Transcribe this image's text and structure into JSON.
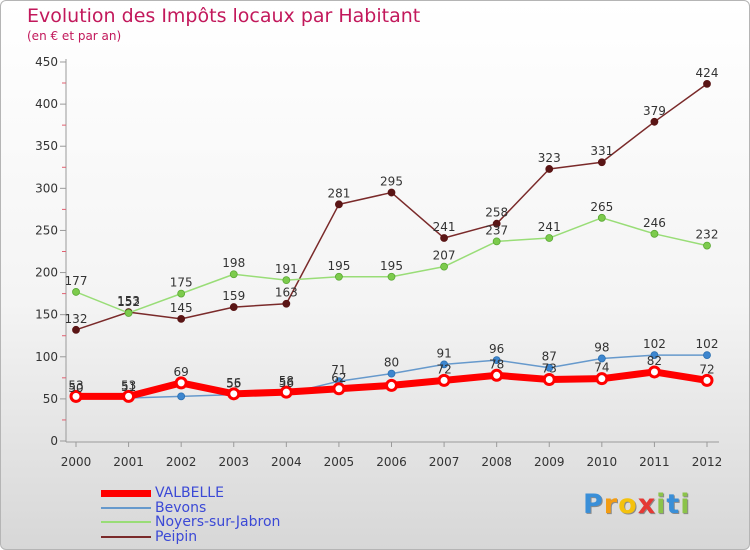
{
  "title": "Evolution des Impôts locaux par Habitant",
  "subtitle": "(en € et par an)",
  "logo": {
    "letters": [
      "P",
      "r",
      "o",
      "x",
      "i",
      "t",
      "i"
    ],
    "colors": [
      "#3a8fd8",
      "#f39c12",
      "#f4c20d",
      "#e53935",
      "#8bc34a",
      "#3a8fd8",
      "#8bc34a"
    ]
  },
  "chart_data": {
    "type": "line",
    "x": [
      "2000",
      "2001",
      "2002",
      "2003",
      "2004",
      "2005",
      "2006",
      "2007",
      "2008",
      "2009",
      "2010",
      "2011",
      "2012"
    ],
    "ylim": [
      0,
      450
    ],
    "yticks": [
      "0",
      "50",
      "100",
      "150",
      "200",
      "250",
      "300",
      "350",
      "400",
      "450"
    ],
    "grid": false,
    "legend_position": "bottom-left",
    "series": [
      {
        "name": "VALBELLE",
        "color": "#ff0000",
        "values": [
          53,
          53,
          69,
          56,
          58,
          62,
          66,
          72,
          78,
          73,
          74,
          82,
          72
        ],
        "labels": [
          "53",
          "53",
          "69",
          "56",
          "58",
          "62",
          "",
          "72",
          "78",
          "73",
          "74",
          "82",
          "72"
        ]
      },
      {
        "name": "Bevons",
        "color": "#6699cc",
        "values": [
          50,
          51,
          53,
          55,
          56,
          71,
          80,
          91,
          96,
          87,
          98,
          102,
          102
        ],
        "labels": [
          "50",
          "51",
          "",
          "55",
          "56",
          "71",
          "80",
          "91",
          "96",
          "87",
          "98",
          "102",
          "102"
        ]
      },
      {
        "name": "Noyers-sur-Jabron",
        "color": "#99dd77",
        "values": [
          177,
          152,
          175,
          198,
          191,
          195,
          195,
          207,
          237,
          241,
          265,
          246,
          232
        ],
        "labels": [
          "177",
          "152",
          "175",
          "198",
          "191",
          "195",
          "195",
          "207",
          "237",
          "241",
          "265",
          "246",
          "232"
        ]
      },
      {
        "name": "Peipin",
        "color": "#7a2a2a",
        "values": [
          132,
          153,
          145,
          159,
          163,
          281,
          295,
          241,
          258,
          323,
          331,
          379,
          424
        ],
        "labels": [
          "132",
          "153",
          "145",
          "159",
          "163",
          "281",
          "295",
          "241",
          "258",
          "323",
          "331",
          "379",
          "424"
        ]
      }
    ]
  }
}
